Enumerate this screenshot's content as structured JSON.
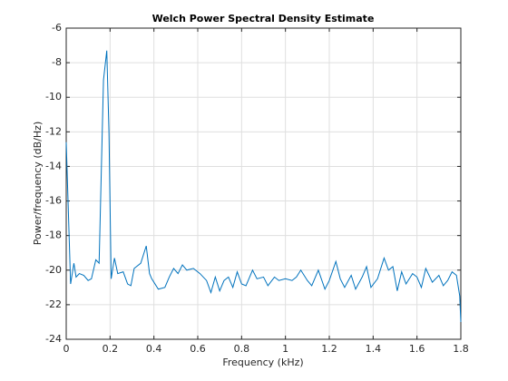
{
  "chart_data": {
    "type": "line",
    "title": "Welch Power Spectral Density Estimate",
    "x_label": "Frequency (kHz)",
    "y_label": "Power/frequency (dB/Hz)",
    "xlim": [
      0,
      1.8
    ],
    "ylim": [
      -24,
      -6
    ],
    "xticks": [
      0,
      0.2,
      0.4,
      0.6,
      0.8,
      1,
      1.2,
      1.4,
      1.6,
      1.8
    ],
    "yticks": [
      -24,
      -22,
      -20,
      -18,
      -16,
      -14,
      -12,
      -10,
      -8,
      -6
    ],
    "grid": true,
    "series": [
      {
        "color": "#0072bd",
        "x": [
          0,
          0.02,
          0.035,
          0.045,
          0.06,
          0.08,
          0.1,
          0.115,
          0.135,
          0.15,
          0.17,
          0.185,
          0.195,
          0.205,
          0.22,
          0.235,
          0.26,
          0.28,
          0.295,
          0.31,
          0.34,
          0.365,
          0.38,
          0.39,
          0.42,
          0.45,
          0.47,
          0.49,
          0.51,
          0.53,
          0.55,
          0.58,
          0.61,
          0.64,
          0.66,
          0.68,
          0.7,
          0.72,
          0.74,
          0.76,
          0.78,
          0.8,
          0.82,
          0.85,
          0.87,
          0.9,
          0.92,
          0.95,
          0.97,
          1.0,
          1.03,
          1.05,
          1.07,
          1.1,
          1.12,
          1.15,
          1.18,
          1.2,
          1.23,
          1.25,
          1.27,
          1.3,
          1.32,
          1.35,
          1.37,
          1.39,
          1.42,
          1.45,
          1.47,
          1.49,
          1.51,
          1.53,
          1.55,
          1.58,
          1.6,
          1.62,
          1.64,
          1.67,
          1.7,
          1.72,
          1.74,
          1.76,
          1.78,
          1.795,
          1.8
        ],
        "values": [
          -12.6,
          -20.8,
          -19.6,
          -20.4,
          -20.2,
          -20.3,
          -20.6,
          -20.5,
          -19.4,
          -19.6,
          -9,
          -7.3,
          -12,
          -20.5,
          -19.3,
          -20.2,
          -20.1,
          -20.8,
          -20.9,
          -19.9,
          -19.6,
          -18.6,
          -20.2,
          -20.5,
          -21.1,
          -21.0,
          -20.4,
          -19.9,
          -20.2,
          -19.7,
          -20.0,
          -19.9,
          -20.2,
          -20.6,
          -21.3,
          -20.4,
          -21.2,
          -20.6,
          -20.4,
          -21.0,
          -20.1,
          -20.8,
          -20.9,
          -20.0,
          -20.5,
          -20.4,
          -20.9,
          -20.4,
          -20.6,
          -20.5,
          -20.6,
          -20.4,
          -20.0,
          -20.6,
          -20.9,
          -20.0,
          -21.1,
          -20.6,
          -19.5,
          -20.5,
          -21.0,
          -20.3,
          -21.1,
          -20.4,
          -19.8,
          -21.0,
          -20.5,
          -19.3,
          -20.0,
          -19.8,
          -21.2,
          -20.1,
          -20.8,
          -20.2,
          -20.4,
          -21.0,
          -19.9,
          -20.7,
          -20.3,
          -20.9,
          -20.6,
          -20.1,
          -20.3,
          -21.5,
          -23.0
        ]
      }
    ]
  }
}
